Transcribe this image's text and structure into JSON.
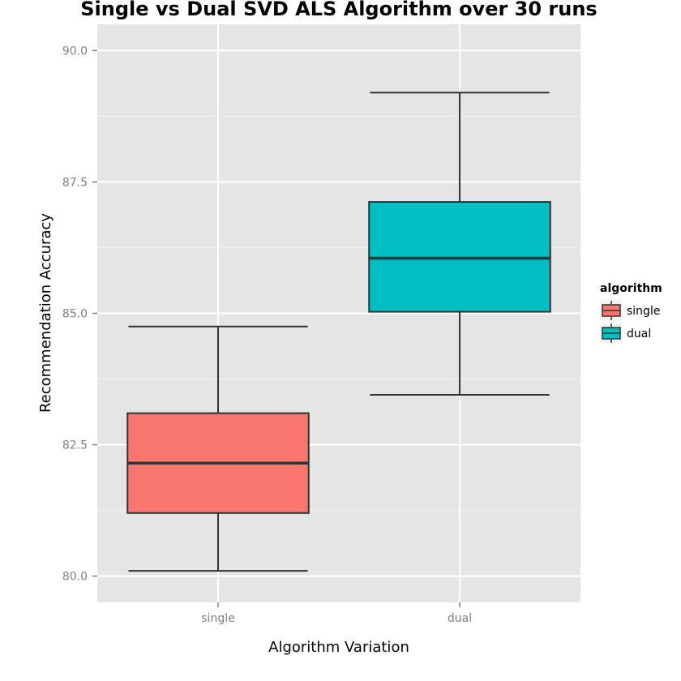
{
  "chart_data": {
    "type": "box",
    "title": "Single vs Dual SVD ALS Algorithm over 30 runs",
    "xlabel": "Algorithm Variation",
    "ylabel": "Recommendation Accuracy",
    "ylim": [
      79.5,
      90.5
    ],
    "y_ticks": [
      "80.0",
      "82.5",
      "85.0",
      "87.5",
      "90.0"
    ],
    "categories": [
      "single",
      "dual"
    ],
    "legend_title": "algorithm",
    "legend_placement": "right",
    "grid": true,
    "series": [
      {
        "name": "single",
        "color": "#f8766d",
        "whisker_low": 80.1,
        "q1": 81.2,
        "median": 82.15,
        "q3": 83.1,
        "whisker_high": 84.75
      },
      {
        "name": "dual",
        "color": "#00bfc4",
        "whisker_low": 83.45,
        "q1": 85.03,
        "median": 86.05,
        "q3": 87.12,
        "whisker_high": 89.2
      }
    ]
  }
}
